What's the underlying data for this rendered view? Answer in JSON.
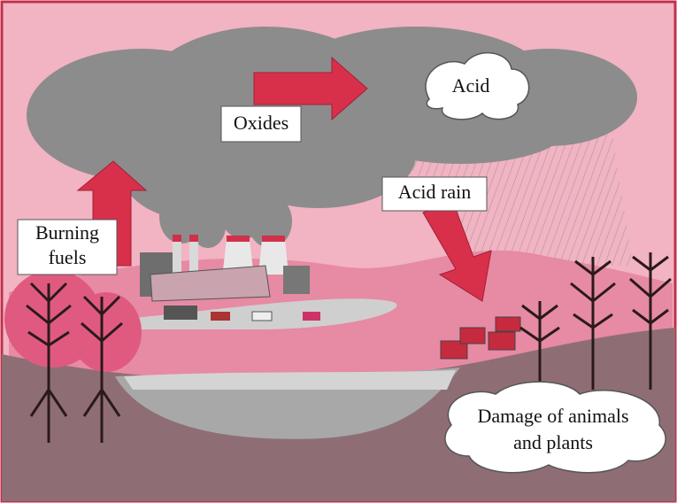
{
  "labels": {
    "burning_fuels": [
      "Burning",
      "fuels"
    ],
    "oxides": "Oxides",
    "acid": "Acid",
    "acid_rain": "Acid rain",
    "damage": [
      "Damage of animals",
      "and plants"
    ]
  }
}
